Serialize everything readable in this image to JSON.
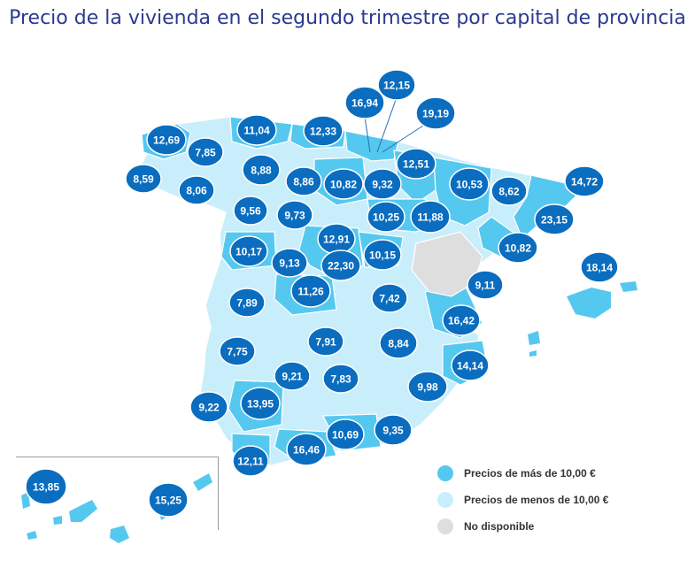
{
  "title": "Precio de la vivienda en el segundo trimestre por capital de provincia",
  "colors": {
    "above": "#55c8ef",
    "below": "#c9eefb",
    "unavailable": "#dedede",
    "bubble": "#0a6dbf",
    "bubble_text": "#ffffff",
    "title": "#2b3a8f"
  },
  "legend": [
    {
      "label": "Precios de más de 10,00 €",
      "key": "above"
    },
    {
      "label": "Precios de menos de 10,00 €",
      "key": "below"
    },
    {
      "label": "No disponible",
      "key": "unavailable"
    }
  ],
  "provinces": [
    {
      "name": "A Coruña",
      "value": "12,69"
    },
    {
      "name": "Lugo",
      "value": "7,85"
    },
    {
      "name": "Pontevedra",
      "value": "8,59"
    },
    {
      "name": "Ourense",
      "value": "8,06"
    },
    {
      "name": "Asturias",
      "value": "11,04"
    },
    {
      "name": "Cantabria",
      "value": "12,33"
    },
    {
      "name": "Bizkaia",
      "value": "16,94"
    },
    {
      "name": "Gipuzkoa",
      "value": "12,15"
    },
    {
      "name": "Álava",
      "value": "19,19"
    },
    {
      "name": "León",
      "value": "8,88"
    },
    {
      "name": "Palencia",
      "value": "8,86"
    },
    {
      "name": "Burgos",
      "value": "10,82"
    },
    {
      "name": "La Rioja",
      "value": "9,32"
    },
    {
      "name": "Navarra",
      "value": "12,51"
    },
    {
      "name": "Huesca",
      "value": "10,53"
    },
    {
      "name": "Lleida",
      "value": "8,62"
    },
    {
      "name": "Girona",
      "value": "14,72"
    },
    {
      "name": "Barcelona",
      "value": "23,15"
    },
    {
      "name": "Tarragona",
      "value": "10,82"
    },
    {
      "name": "Zamora",
      "value": "9,56"
    },
    {
      "name": "Valladolid",
      "value": "9,73"
    },
    {
      "name": "Soria",
      "value": "10,25"
    },
    {
      "name": "Zaragoza",
      "value": "11,88"
    },
    {
      "name": "Segovia",
      "value": "12,91"
    },
    {
      "name": "Salamanca",
      "value": "10,17"
    },
    {
      "name": "Ávila",
      "value": "9,13"
    },
    {
      "name": "Madrid",
      "value": "22,30"
    },
    {
      "name": "Guadalajara",
      "value": "10,15"
    },
    {
      "name": "Baleares",
      "value": "18,14"
    },
    {
      "name": "Castellón",
      "value": "9,11"
    },
    {
      "name": "Cáceres",
      "value": "7,89"
    },
    {
      "name": "Toledo",
      "value": "11,26"
    },
    {
      "name": "Cuenca",
      "value": "7,42"
    },
    {
      "name": "Valencia",
      "value": "16,42"
    },
    {
      "name": "Badajoz",
      "value": "7,75"
    },
    {
      "name": "Ciudad Real",
      "value": "7,91"
    },
    {
      "name": "Albacete",
      "value": "8,84"
    },
    {
      "name": "Alicante",
      "value": "14,14"
    },
    {
      "name": "Córdoba",
      "value": "9,21"
    },
    {
      "name": "Jaén",
      "value": "7,83"
    },
    {
      "name": "Murcia",
      "value": "9,98"
    },
    {
      "name": "Huelva",
      "value": "9,22"
    },
    {
      "name": "Sevilla",
      "value": "13,95"
    },
    {
      "name": "Granada",
      "value": "10,69"
    },
    {
      "name": "Almería",
      "value": "9,35"
    },
    {
      "name": "Málaga",
      "value": "16,46"
    },
    {
      "name": "Cádiz",
      "value": "12,11"
    },
    {
      "name": "Santa Cruz de Tenerife",
      "value": "13,85"
    },
    {
      "name": "Las Palmas",
      "value": "15,25"
    }
  ]
}
